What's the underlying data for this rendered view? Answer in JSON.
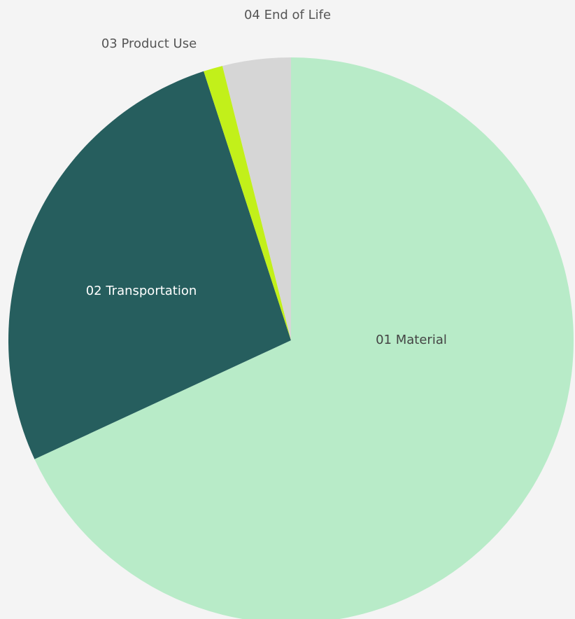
{
  "chart_data": {
    "type": "pie",
    "categories": [
      "01 Material",
      "02 Transportation",
      "03 Product Use",
      "04 End of Life"
    ],
    "values": [
      68.1,
      26.9,
      1.1,
      3.9
    ],
    "colors": [
      "#b8ebc8",
      "#265e5e",
      "#c2f01a",
      "#d6d6d6"
    ]
  }
}
